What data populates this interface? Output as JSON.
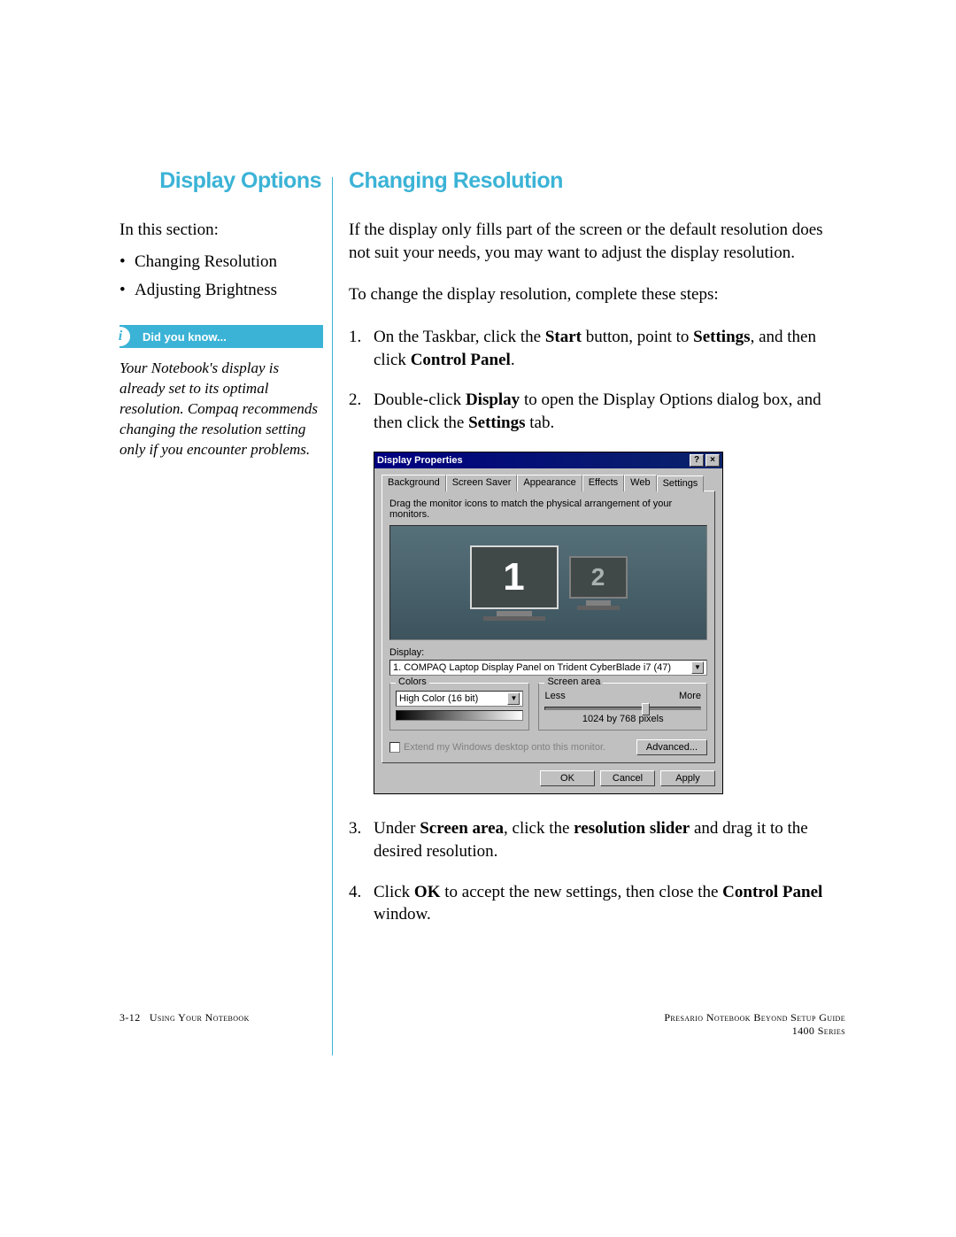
{
  "left": {
    "title": "Display Options",
    "intro": "In this section:",
    "items": [
      "Changing Resolution",
      "Adjusting Brightness"
    ],
    "callout": {
      "label": "Did you know...",
      "body": "Your Notebook's display is already set to its optimal resolution. Compaq recommends changing the resolution setting only if you encounter problems."
    }
  },
  "right": {
    "title": "Changing Resolution",
    "p1": "If the display only fills part of the screen or the default resolution does not suit your needs, you may want to adjust the display resolution.",
    "p2": "To change the display resolution, complete these steps:",
    "step3_a": "Under ",
    "step3_b": "Screen area",
    "step3_c": ", click the ",
    "step3_d": "resolution slider",
    "step3_e": " and drag it to the desired resolution.",
    "step4_a": "Click ",
    "step4_b": "OK",
    "step4_c": " to accept the new settings, then close the ",
    "step4_d": "Control Panel",
    "step4_e": " window."
  },
  "dialog": {
    "title": "Display Properties",
    "tabs": [
      "Background",
      "Screen Saver",
      "Appearance",
      "Effects",
      "Web",
      "Settings"
    ],
    "hint": "Drag the monitor icons to match the physical arrangement of your monitors.",
    "mon1": "1",
    "mon2": "2",
    "displayLabel": "Display:",
    "displayValue": "1. COMPAQ Laptop Display Panel on Trident CyberBlade i7 (47)",
    "colorsLabel": "Colors",
    "colorsValue": "High Color (16 bit)",
    "screenAreaLabel": "Screen area",
    "less": "Less",
    "more": "More",
    "resolution": "1024 by 768 pixels",
    "extend": "Extend my Windows desktop onto this monitor.",
    "advanced": "Advanced...",
    "ok": "OK",
    "cancel": "Cancel",
    "apply": "Apply"
  },
  "footer": {
    "leftPage": "3-12",
    "leftText": "Using Your Notebook",
    "rightLine1": "Presario Notebook Beyond Setup Guide",
    "rightLine2": "1400 Series"
  },
  "colors": {
    "accent": "#3bb3d6",
    "text": "#000000",
    "winGray": "#c0c0c0",
    "winTitle": "#000080"
  }
}
